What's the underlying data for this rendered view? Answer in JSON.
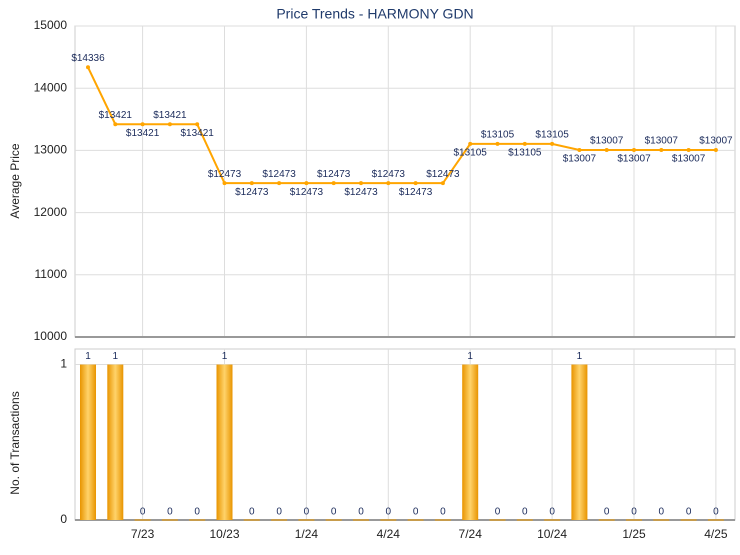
{
  "chart_data": [
    {
      "type": "line",
      "title": "Price Trends - HARMONY GDN",
      "ylabel": "Average Price",
      "values": [
        14336,
        13421,
        13421,
        13421,
        13421,
        12473,
        12473,
        12473,
        12473,
        12473,
        12473,
        12473,
        12473,
        12473,
        13105,
        13105,
        13105,
        13105,
        13007,
        13007,
        13007,
        13007,
        13007,
        13007
      ],
      "value_labels": [
        "$14336",
        "$13421",
        "$13421",
        "$13421",
        "$13421",
        "$12473",
        "$12473",
        "$12473",
        "$12473",
        "$12473",
        "$12473",
        "$12473",
        "$12473",
        "$12473",
        "$13105",
        "$13105",
        "$13105",
        "$13105",
        "$13007",
        "$13007",
        "$13007",
        "$13007",
        "$13007",
        "$13007"
      ],
      "ylim": [
        10000,
        15000
      ],
      "yticks": [
        10000,
        11000,
        12000,
        13000,
        14000,
        15000
      ],
      "color": "#ffa500",
      "grid": true
    },
    {
      "type": "bar",
      "ylabel": "No. of Transactions",
      "categories": [
        null,
        null,
        "7/23",
        null,
        null,
        "10/23",
        null,
        null,
        "1/24",
        null,
        null,
        "4/24",
        null,
        null,
        "7/24",
        null,
        null,
        "10/24",
        null,
        null,
        "1/25",
        null,
        null,
        "4/25"
      ],
      "values": [
        1,
        1,
        0,
        0,
        0,
        1,
        0,
        0,
        0,
        0,
        0,
        0,
        0,
        0,
        1,
        0,
        0,
        0,
        1,
        0,
        0,
        0,
        0,
        0
      ],
      "ylim": [
        0,
        1.1
      ],
      "yticks": [
        0,
        1
      ],
      "color": "#f5a000",
      "grid": true
    }
  ]
}
